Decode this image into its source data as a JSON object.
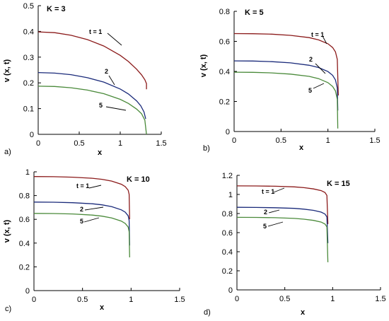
{
  "chart_data": [
    {
      "type": "line",
      "panel_label": "a)",
      "title": "K = 3",
      "xlabel": "x",
      "ylabel": "v (x, t)",
      "xlim": [
        0,
        1.5
      ],
      "ylim": [
        0,
        0.5
      ],
      "xticks": [
        "0",
        "0.5",
        "1",
        "1.5"
      ],
      "yticks": [
        "0",
        "0.1",
        "0.2",
        "0.3",
        "0.4",
        "0.5"
      ],
      "series": [
        {
          "name": "t = 1",
          "color": "#8b1a1a",
          "x": [
            0,
            0.2,
            0.4,
            0.6,
            0.8,
            1.0,
            1.1,
            1.2,
            1.26,
            1.3,
            1.32,
            1.32
          ],
          "y": [
            0.398,
            0.395,
            0.385,
            0.368,
            0.343,
            0.307,
            0.283,
            0.253,
            0.231,
            0.212,
            0.197,
            0.175
          ]
        },
        {
          "name": "2",
          "color": "#1a2a7a",
          "x": [
            0,
            0.2,
            0.4,
            0.6,
            0.8,
            1.0,
            1.1,
            1.2,
            1.25,
            1.29,
            1.31
          ],
          "y": [
            0.24,
            0.238,
            0.232,
            0.22,
            0.203,
            0.176,
            0.157,
            0.13,
            0.111,
            0.087,
            0.06
          ]
        },
        {
          "name": "5",
          "color": "#4a8a3a",
          "x": [
            0,
            0.2,
            0.4,
            0.6,
            0.8,
            1.0,
            1.1,
            1.2,
            1.26,
            1.3,
            1.32
          ],
          "y": [
            0.187,
            0.186,
            0.181,
            0.172,
            0.158,
            0.136,
            0.12,
            0.098,
            0.08,
            0.055,
            0.0
          ]
        }
      ],
      "annotations": [
        {
          "text": "t = 1",
          "series": 0
        },
        {
          "text": "2",
          "series": 1
        },
        {
          "text": "5",
          "series": 2
        }
      ]
    },
    {
      "type": "line",
      "panel_label": "b)",
      "title": "K = 5",
      "xlabel": "x",
      "ylabel": "v (x, t)",
      "xlim": [
        0,
        1.5
      ],
      "ylim": [
        0,
        0.8
      ],
      "xticks": [
        "0",
        "0.5",
        "1",
        "1.5"
      ],
      "yticks": [
        "0",
        "0.2",
        "0.4",
        "0.6",
        "0.8"
      ],
      "series": [
        {
          "name": "t = 1",
          "color": "#8b1a1a",
          "x": [
            0,
            0.2,
            0.4,
            0.6,
            0.8,
            0.9,
            1.0,
            1.05,
            1.08,
            1.1,
            1.11
          ],
          "y": [
            0.652,
            0.651,
            0.648,
            0.64,
            0.625,
            0.61,
            0.584,
            0.559,
            0.53,
            0.48,
            0.24
          ]
        },
        {
          "name": "2",
          "color": "#1a2a7a",
          "x": [
            0,
            0.2,
            0.4,
            0.6,
            0.8,
            0.9,
            1.0,
            1.05,
            1.08,
            1.1,
            1.105
          ],
          "y": [
            0.47,
            0.469,
            0.465,
            0.457,
            0.441,
            0.426,
            0.399,
            0.374,
            0.343,
            0.29,
            0.14
          ]
        },
        {
          "name": "5",
          "color": "#4a8a3a",
          "x": [
            0,
            0.2,
            0.4,
            0.6,
            0.8,
            0.9,
            1.0,
            1.05,
            1.08,
            1.1,
            1.105
          ],
          "y": [
            0.395,
            0.394,
            0.39,
            0.382,
            0.367,
            0.352,
            0.325,
            0.3,
            0.27,
            0.215,
            0.02
          ]
        }
      ],
      "annotations": [
        {
          "text": "t = 1",
          "series": 0
        },
        {
          "text": "2",
          "series": 1
        },
        {
          "text": "5",
          "series": 2
        }
      ]
    },
    {
      "type": "line",
      "panel_label": "c)",
      "title": "K = 10",
      "xlabel": "x",
      "ylabel": "v (x, t)",
      "xlim": [
        0,
        1.5
      ],
      "ylim": [
        0,
        1
      ],
      "xticks": [
        "0",
        "0.5",
        "1",
        "1.5"
      ],
      "yticks": [
        "0",
        "0.2",
        "0.4",
        "0.6",
        "0.8",
        "1"
      ],
      "series": [
        {
          "name": "t = 1",
          "color": "#8b1a1a",
          "x": [
            0,
            0.2,
            0.4,
            0.6,
            0.7,
            0.8,
            0.9,
            0.94,
            0.97,
            0.98,
            0.985
          ],
          "y": [
            0.96,
            0.959,
            0.955,
            0.946,
            0.937,
            0.922,
            0.895,
            0.875,
            0.845,
            0.81,
            0.6
          ]
        },
        {
          "name": "2",
          "color": "#1a2a7a",
          "x": [
            0,
            0.2,
            0.4,
            0.6,
            0.7,
            0.8,
            0.9,
            0.94,
            0.97,
            0.98,
            0.985
          ],
          "y": [
            0.745,
            0.744,
            0.74,
            0.731,
            0.722,
            0.707,
            0.68,
            0.66,
            0.63,
            0.59,
            0.38
          ]
        },
        {
          "name": "5",
          "color": "#4a8a3a",
          "x": [
            0,
            0.2,
            0.4,
            0.6,
            0.7,
            0.8,
            0.9,
            0.94,
            0.97,
            0.98,
            0.985
          ],
          "y": [
            0.65,
            0.649,
            0.645,
            0.636,
            0.627,
            0.612,
            0.585,
            0.565,
            0.535,
            0.495,
            0.28
          ]
        }
      ],
      "annotations": [
        {
          "text": "t = 1",
          "series": 0
        },
        {
          "text": "2",
          "series": 1
        },
        {
          "text": "5",
          "series": 2
        }
      ]
    },
    {
      "type": "line",
      "panel_label": "d)",
      "title": "K = 15",
      "xlabel": "x",
      "ylabel": "",
      "xlim": [
        0,
        1.5
      ],
      "ylim": [
        0,
        1.2
      ],
      "xticks": [
        "0",
        "0.5",
        "1",
        "1.5"
      ],
      "yticks": [
        "0",
        "0.2",
        "0.4",
        "0.6",
        "0.8",
        "1",
        "1.2"
      ],
      "series": [
        {
          "name": "t = 1",
          "color": "#8b1a1a",
          "x": [
            0,
            0.2,
            0.4,
            0.6,
            0.7,
            0.8,
            0.88,
            0.92,
            0.94,
            0.95
          ],
          "y": [
            1.09,
            1.089,
            1.086,
            1.079,
            1.071,
            1.058,
            1.04,
            1.02,
            0.99,
            0.69
          ]
        },
        {
          "name": "2",
          "color": "#1a2a7a",
          "x": [
            0,
            0.2,
            0.4,
            0.6,
            0.7,
            0.8,
            0.88,
            0.92,
            0.94,
            0.95
          ],
          "y": [
            0.865,
            0.864,
            0.861,
            0.854,
            0.846,
            0.833,
            0.815,
            0.795,
            0.765,
            0.49
          ]
        },
        {
          "name": "5",
          "color": "#4a8a3a",
          "x": [
            0,
            0.2,
            0.4,
            0.6,
            0.7,
            0.8,
            0.88,
            0.92,
            0.94,
            0.95
          ],
          "y": [
            0.76,
            0.759,
            0.756,
            0.749,
            0.741,
            0.728,
            0.71,
            0.69,
            0.66,
            0.29
          ]
        }
      ],
      "annotations": [
        {
          "text": "t = 1",
          "series": 0
        },
        {
          "text": "2",
          "series": 1
        },
        {
          "text": "5",
          "series": 2
        }
      ]
    }
  ]
}
